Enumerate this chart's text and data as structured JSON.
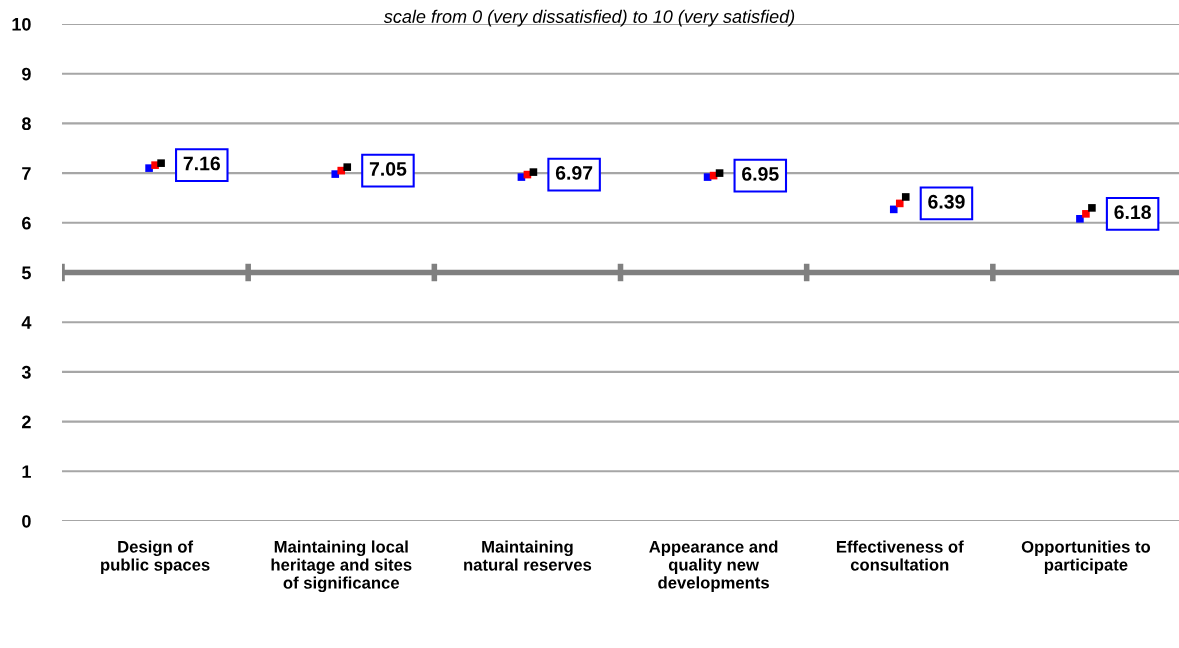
{
  "chart_data": {
    "type": "scatter",
    "subtitle": "scale from 0 (very dissatisfied) to 10 (very satisfied)",
    "categories": [
      "Design of\npublic spaces",
      "Maintaining local\nheritage and sites\nof significance",
      "Maintaining\nnatural reserves",
      "Appearance and\nquality new\ndevelopments",
      "Effectiveness of\nconsultation",
      "Opportunities to\nparticipate"
    ],
    "series": [
      {
        "color": "#0000ff",
        "values": [
          7.1,
          6.98,
          6.92,
          6.92,
          6.27,
          6.08
        ]
      },
      {
        "color": "#ff0000",
        "values": [
          7.16,
          7.05,
          6.97,
          6.95,
          6.39,
          6.18
        ],
        "value_labels": [
          "7.16",
          "7.05",
          "6.97",
          "6.95",
          "6.39",
          "6.18"
        ]
      },
      {
        "color": "#000000",
        "values": [
          7.2,
          7.12,
          7.02,
          7.0,
          6.52,
          6.3
        ]
      }
    ],
    "marker": "square",
    "ylim": [
      0,
      10
    ],
    "yticks": [
      0,
      1,
      2,
      3,
      4,
      5,
      6,
      7,
      8,
      9,
      10
    ],
    "grid": "y",
    "ref_lines": [
      {
        "axis": "y",
        "value": 5,
        "color": "#808080"
      }
    ]
  }
}
